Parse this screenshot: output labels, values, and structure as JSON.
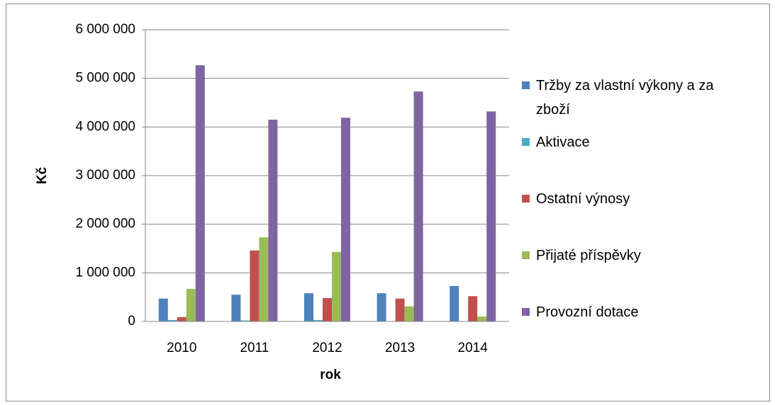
{
  "chart_data": {
    "type": "bar",
    "y_label": "Kč",
    "x_label": "rok",
    "categories": [
      "2010",
      "2011",
      "2012",
      "2013",
      "2014"
    ],
    "series": [
      {
        "name": "Tržby za vlastní výkony a za zboží",
        "color": "#4f81bd",
        "values": [
          470000,
          550000,
          580000,
          580000,
          730000
        ]
      },
      {
        "name": "Aktivace",
        "color": "#4bacc6",
        "values": [
          30000,
          20000,
          30000,
          0,
          0
        ]
      },
      {
        "name": "Ostatní výnosy",
        "color": "#c0504d",
        "values": [
          90000,
          1460000,
          480000,
          470000,
          520000
        ]
      },
      {
        "name": "Přijaté příspěvky",
        "color": "#9bbb59",
        "values": [
          670000,
          1730000,
          1430000,
          310000,
          100000
        ]
      },
      {
        "name": "Provozní dotace",
        "color": "#8064a2",
        "values": [
          5270000,
          4150000,
          4190000,
          4730000,
          4320000
        ]
      }
    ],
    "ylim": [
      0,
      6000000
    ],
    "yticks": [
      0,
      {
        "value": 1000000,
        "label": "1 000 000"
      },
      {
        "value": 2000000,
        "label": "2 000 000"
      },
      {
        "value": 3000000,
        "label": "3 000 000"
      },
      {
        "value": 4000000,
        "label": "4 000 000"
      },
      {
        "value": 5000000,
        "label": "5 000 000"
      },
      {
        "value": 6000000,
        "label": "6 000 000"
      }
    ],
    "grid": true,
    "legend": "right"
  }
}
